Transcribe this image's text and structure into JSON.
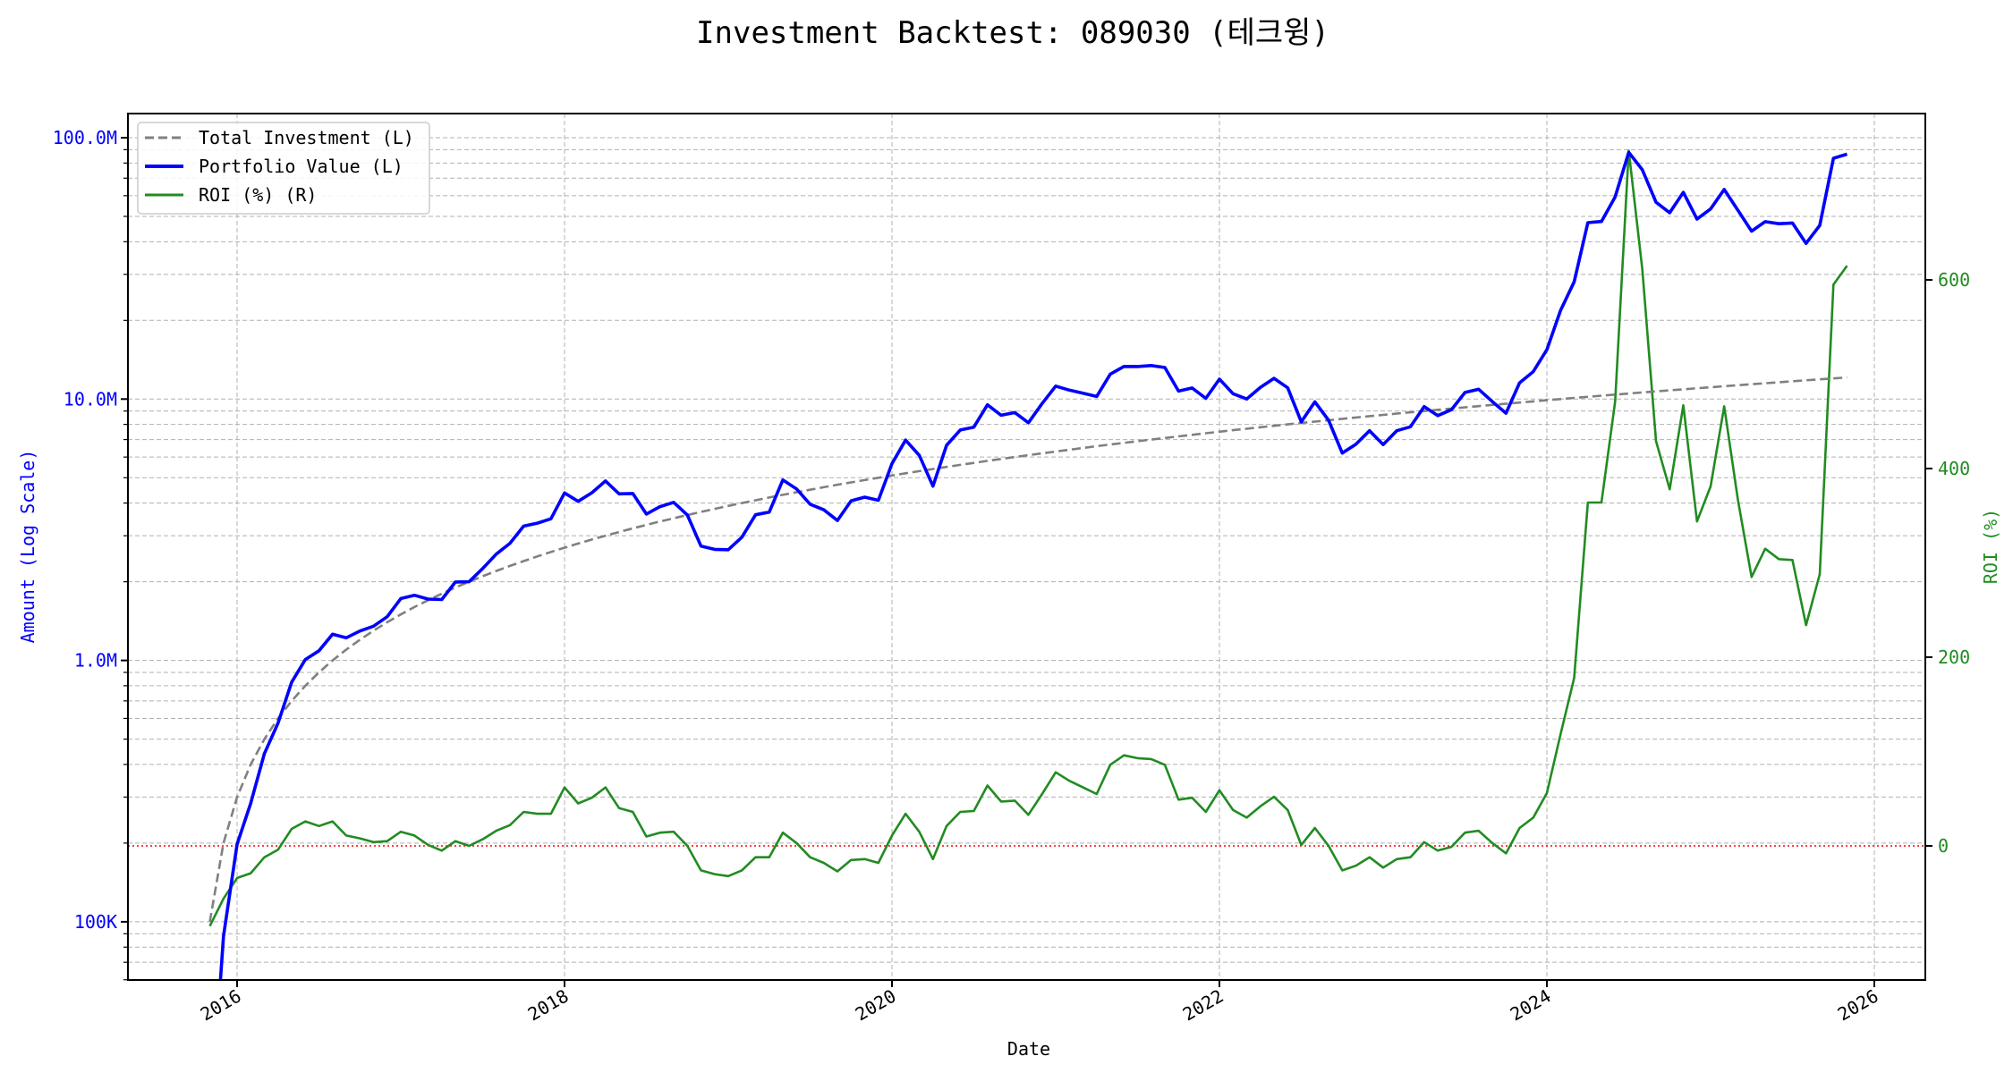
{
  "chart_data": {
    "type": "line",
    "title": "Investment Backtest: 089030 (테크윙)",
    "xlabel": "Date",
    "ylabel_left": "Amount (Log Scale)",
    "ylabel_right": "ROI (%)",
    "y_left_scale": "log",
    "y_left_lim": [
      60000,
      124000000
    ],
    "y_right_lim": [
      -140,
      776
    ],
    "x_lim": [
      "2015-05",
      "2026-05"
    ],
    "grid": true,
    "legend_position": "top-left",
    "x_ticks": [
      "2016",
      "2018",
      "2020",
      "2022",
      "2024",
      "2026"
    ],
    "y_left_ticks": [
      {
        "value": 100000000,
        "label": "100.0M"
      },
      {
        "value": 10000000,
        "label": "10.0M"
      },
      {
        "value": 1000000,
        "label": "1.0M"
      },
      {
        "value": 100000,
        "label": "100K"
      }
    ],
    "y_right_ticks": [
      {
        "value": 0,
        "label": "0"
      },
      {
        "value": 200,
        "label": "200"
      },
      {
        "value": 400,
        "label": "400"
      },
      {
        "value": 600,
        "label": "600"
      }
    ],
    "reference_line": {
      "axis": "right",
      "value": 0,
      "color": "#ff0000"
    },
    "dates": [
      "2015-11",
      "2015-12",
      "2016-01",
      "2016-02",
      "2016-03",
      "2016-04",
      "2016-05",
      "2016-06",
      "2016-07",
      "2016-08",
      "2016-09",
      "2016-10",
      "2016-11",
      "2016-12",
      "2017-01",
      "2017-02",
      "2017-03",
      "2017-04",
      "2017-05",
      "2017-06",
      "2017-07",
      "2017-08",
      "2017-09",
      "2017-10",
      "2017-11",
      "2017-12",
      "2018-01",
      "2018-02",
      "2018-03",
      "2018-04",
      "2018-05",
      "2018-06",
      "2018-07",
      "2018-08",
      "2018-09",
      "2018-10",
      "2018-11",
      "2018-12",
      "2019-01",
      "2019-02",
      "2019-03",
      "2019-04",
      "2019-05",
      "2019-06",
      "2019-07",
      "2019-08",
      "2019-09",
      "2019-10",
      "2019-11",
      "2019-12",
      "2020-01",
      "2020-02",
      "2020-03",
      "2020-04",
      "2020-05",
      "2020-06",
      "2020-07",
      "2020-08",
      "2020-09",
      "2020-10",
      "2020-11",
      "2020-12",
      "2021-01",
      "2021-02",
      "2021-03",
      "2021-04",
      "2021-05",
      "2021-06",
      "2021-07",
      "2021-08",
      "2021-09",
      "2021-10",
      "2021-11",
      "2021-12",
      "2022-01",
      "2022-02",
      "2022-03",
      "2022-04",
      "2022-05",
      "2022-06",
      "2022-07",
      "2022-08",
      "2022-09",
      "2022-10",
      "2022-11",
      "2022-12",
      "2023-01",
      "2023-02",
      "2023-03",
      "2023-04",
      "2023-05",
      "2023-06",
      "2023-07",
      "2023-08",
      "2023-09",
      "2023-10",
      "2023-11",
      "2023-12",
      "2024-01",
      "2024-02",
      "2024-03",
      "2024-04",
      "2024-05",
      "2024-06",
      "2024-07",
      "2024-08",
      "2024-09",
      "2024-10",
      "2024-11",
      "2024-12",
      "2025-01",
      "2025-02",
      "2025-03",
      "2025-04",
      "2025-05",
      "2025-06",
      "2025-07",
      "2025-08",
      "2025-09",
      "2025-10",
      "2025-11"
    ],
    "series": [
      {
        "name": "Total Investment (L)",
        "axis": "left",
        "color": "#808080",
        "style": "dashed",
        "values_millions": [
          0.1,
          0.2,
          0.3,
          0.4,
          0.5,
          0.6,
          0.7,
          0.8,
          0.9,
          1.0,
          1.1,
          1.2,
          1.3,
          1.4,
          1.5,
          1.6,
          1.7,
          1.8,
          1.9,
          2.0,
          2.1,
          2.2,
          2.3,
          2.4,
          2.5,
          2.6,
          2.7,
          2.8,
          2.9,
          3.0,
          3.1,
          3.2,
          3.3,
          3.4,
          3.5,
          3.6,
          3.7,
          3.8,
          3.9,
          4.0,
          4.1,
          4.2,
          4.3,
          4.4,
          4.5,
          4.6,
          4.7,
          4.8,
          4.9,
          5.0,
          5.1,
          5.2,
          5.3,
          5.4,
          5.5,
          5.6,
          5.7,
          5.8,
          5.9,
          6.0,
          6.1,
          6.2,
          6.3,
          6.4,
          6.5,
          6.6,
          6.7,
          6.8,
          6.9,
          7.0,
          7.1,
          7.2,
          7.3,
          7.4,
          7.5,
          7.6,
          7.7,
          7.8,
          7.9,
          8.0,
          8.1,
          8.2,
          8.3,
          8.4,
          8.5,
          8.6,
          8.7,
          8.8,
          8.9,
          9.0,
          9.1,
          9.2,
          9.3,
          9.4,
          9.5,
          9.6,
          9.7,
          9.8,
          9.9,
          10.0,
          10.1,
          10.2,
          10.3,
          10.4,
          10.5,
          10.6,
          10.7,
          10.8,
          10.9,
          11.0,
          11.1,
          11.2,
          11.3,
          11.4,
          11.5,
          11.6,
          11.7,
          11.8,
          11.9,
          12.0,
          12.1
        ]
      },
      {
        "name": "Portfolio Value (L)",
        "axis": "left",
        "color": "#0000ff",
        "style": "solid",
        "values_millions": [
          0.015,
          0.088,
          0.198,
          0.284,
          0.44,
          0.576,
          0.826,
          1.008,
          1.089,
          1.26,
          1.221,
          1.296,
          1.352,
          1.47,
          1.725,
          1.776,
          1.717,
          1.71,
          1.995,
          2.0,
          2.247,
          2.552,
          2.806,
          3.264,
          3.35,
          3.484,
          4.374,
          4.06,
          4.379,
          4.86,
          4.34,
          4.352,
          3.63,
          3.876,
          4.025,
          3.6,
          2.738,
          2.66,
          2.652,
          2.96,
          3.608,
          3.696,
          4.902,
          4.532,
          3.96,
          3.772,
          3.431,
          4.08,
          4.214,
          4.1,
          5.661,
          6.968,
          6.095,
          4.644,
          6.655,
          7.616,
          7.809,
          9.512,
          8.673,
          8.88,
          8.113,
          9.61,
          11.214,
          10.816,
          10.53,
          10.23,
          12.462,
          13.328,
          13.317,
          13.44,
          13.206,
          10.728,
          11.023,
          10.064,
          11.925,
          10.488,
          10.01,
          11.076,
          12.008,
          11.04,
          8.181,
          9.758,
          8.3,
          6.216,
          6.715,
          7.568,
          6.699,
          7.568,
          7.832,
          9.36,
          8.645,
          9.108,
          10.602,
          10.904,
          9.785,
          8.832,
          11.543,
          12.74,
          15.444,
          21.8,
          28.078,
          47.328,
          47.792,
          59.384,
          87.885,
          75.366,
          56.603,
          51.624,
          61.803,
          48.84,
          53.391,
          63.392,
          52.771,
          43.89,
          47.725,
          46.864,
          47.151,
          39.412,
          46.172,
          83.4,
          86.515
        ]
      },
      {
        "name": "ROI (%) (R)",
        "axis": "right",
        "color": "#228b22",
        "style": "solid",
        "values": [
          -85,
          -56,
          -34,
          -29,
          -12,
          -4,
          18,
          26,
          21,
          26,
          11,
          8,
          4,
          5,
          15,
          11,
          1,
          -5,
          5,
          0,
          7,
          16,
          22,
          36,
          34,
          34,
          62,
          45,
          51,
          62,
          40,
          36,
          10,
          14,
          15,
          0,
          -26,
          -30,
          -32,
          -26,
          -12,
          -12,
          14,
          3,
          -12,
          -18,
          -27,
          -15,
          -14,
          -18,
          11,
          34,
          15,
          -14,
          21,
          36,
          37,
          64,
          47,
          48,
          33,
          55,
          78,
          69,
          62,
          55,
          86,
          96,
          93,
          92,
          86,
          49,
          51,
          36,
          59,
          38,
          30,
          42,
          52,
          38,
          1,
          19,
          0,
          -26,
          -21,
          -12,
          -23,
          -14,
          -12,
          4,
          -5,
          -1,
          14,
          16,
          3,
          -8,
          19,
          30,
          56,
          118,
          178,
          364,
          364,
          471,
          737,
          611,
          429,
          378,
          467,
          344,
          381,
          466,
          367,
          285,
          315,
          304,
          303,
          234,
          288,
          595,
          615
        ]
      }
    ]
  }
}
